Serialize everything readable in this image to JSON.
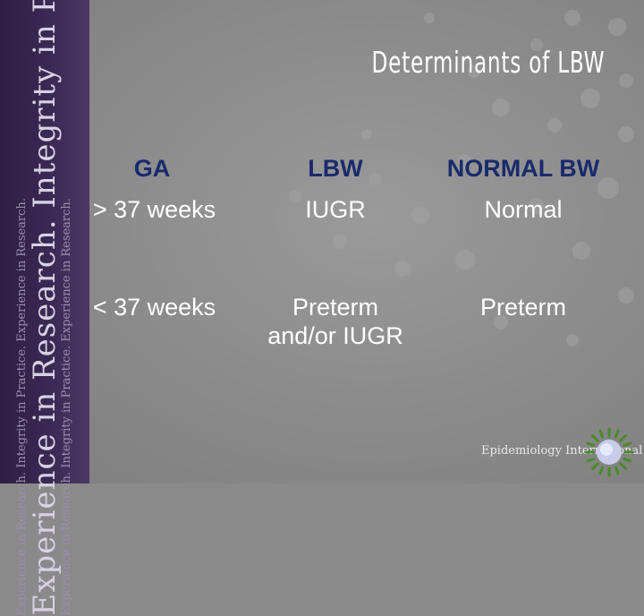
{
  "sidebar": {
    "tagline_large": "Experience in Research. Integrity in Practice.",
    "tagline_small": "Experience in Research. Integrity in Practice. Experience in Research."
  },
  "slide": {
    "title": "Determinants of LBW",
    "headers": {
      "ga": "GA",
      "lbw": "LBW",
      "normal_bw": "NORMAL BW"
    },
    "rows": [
      {
        "ga": "> 37 weeks",
        "lbw": "IUGR",
        "normal_bw": "Normal"
      },
      {
        "ga": "< 37 weeks",
        "lbw_line1": "Preterm",
        "lbw_line2": "and/or IUGR",
        "normal_bw": "Preterm"
      }
    ]
  },
  "logo": {
    "text": "Epidemiology International"
  },
  "colors": {
    "header_text": "#1a2a6c",
    "sidebar": "#3b2a55",
    "background": "#8a8a8a",
    "logo_green": "#4a8a2a"
  }
}
